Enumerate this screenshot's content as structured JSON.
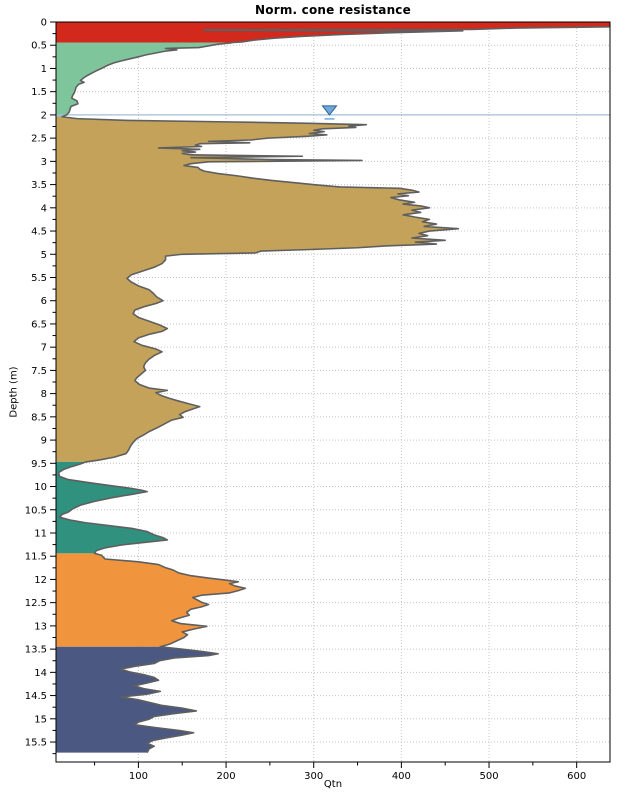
{
  "chart_data": {
    "type": "area",
    "title": "Norm. cone resistance",
    "xlabel": "Qtn",
    "ylabel": "Depth (m)",
    "xlim": [
      6,
      638
    ],
    "ylim": [
      0,
      15.93
    ],
    "grid": true,
    "x_axis": {
      "major_ticks": [
        100,
        200,
        300,
        400,
        500,
        600
      ],
      "tick_labels": [
        "100",
        "200",
        "300",
        "400",
        "500",
        "600"
      ],
      "minor_start": 50,
      "minor_step": 50
    },
    "y_axis": {
      "major_step": 0.5,
      "minor_step": 0.25,
      "tick_labels": [
        "0",
        "0.5",
        "1",
        "1.5",
        "2",
        "2.5",
        "3",
        "3.5",
        "4",
        "4.5",
        "5",
        "5.5",
        "6",
        "6.5",
        "7",
        "7.5",
        "8",
        "8.5",
        "9",
        "9.5",
        "10",
        "10.5",
        "11",
        "11.5",
        "12",
        "12.5",
        "13",
        "13.5",
        "14",
        "14.5",
        "15",
        "15.5"
      ]
    },
    "colors": {
      "curve": "#5f5f5f",
      "grid": "#c4c4c4",
      "axis": "#000000",
      "water_line": "#a3bfdb",
      "water_marker_fill": "#6fa8dc",
      "water_marker_stroke": "#2e5f8a"
    },
    "water_table": {
      "depth": 2.0,
      "marker_q": 318
    },
    "layers": [
      {
        "name": "layer-1",
        "color": "#d3281c",
        "top": 0.0,
        "bottom": 0.44
      },
      {
        "name": "layer-2",
        "color": "#7ec59b",
        "top": 0.44,
        "bottom": 2.04
      },
      {
        "name": "layer-3",
        "color": "#c4a25a",
        "top": 2.04,
        "bottom": 9.47
      },
      {
        "name": "layer-4",
        "color": "#31917f",
        "top": 9.47,
        "bottom": 11.44
      },
      {
        "name": "layer-5",
        "color": "#f0953e",
        "top": 11.44,
        "bottom": 13.45
      },
      {
        "name": "layer-6",
        "color": "#4b5882",
        "top": 13.45,
        "bottom": 15.73
      }
    ],
    "profile": [
      [
        0.0,
        650
      ],
      [
        0.1,
        650
      ],
      [
        0.13,
        530
      ],
      [
        0.16,
        480
      ],
      [
        0.165,
        175
      ],
      [
        0.18,
        175
      ],
      [
        0.19,
        470
      ],
      [
        0.23,
        390
      ],
      [
        0.27,
        330
      ],
      [
        0.31,
        285
      ],
      [
        0.35,
        255
      ],
      [
        0.39,
        232
      ],
      [
        0.43,
        218
      ],
      [
        0.44,
        208
      ],
      [
        0.45,
        205
      ],
      [
        0.48,
        190
      ],
      [
        0.52,
        178
      ],
      [
        0.55,
        169
      ],
      [
        0.57,
        131
      ],
      [
        0.6,
        144
      ],
      [
        0.63,
        130
      ],
      [
        0.67,
        119
      ],
      [
        0.71,
        108
      ],
      [
        0.75,
        100
      ],
      [
        0.79,
        91
      ],
      [
        0.84,
        80
      ],
      [
        0.88,
        72
      ],
      [
        0.93,
        65
      ],
      [
        0.99,
        59
      ],
      [
        1.05,
        52
      ],
      [
        1.1,
        47
      ],
      [
        1.16,
        41
      ],
      [
        1.21,
        37
      ],
      [
        1.26,
        34
      ],
      [
        1.3,
        38
      ],
      [
        1.34,
        32
      ],
      [
        1.4,
        29
      ],
      [
        1.46,
        28
      ],
      [
        1.52,
        27
      ],
      [
        1.58,
        25
      ],
      [
        1.64,
        24
      ],
      [
        1.7,
        30
      ],
      [
        1.76,
        31
      ],
      [
        1.82,
        23
      ],
      [
        1.88,
        22
      ],
      [
        1.94,
        21
      ],
      [
        2.0,
        18
      ],
      [
        2.04,
        13
      ],
      [
        2.08,
        30
      ],
      [
        2.12,
        90
      ],
      [
        2.15,
        200
      ],
      [
        2.18,
        295
      ],
      [
        2.21,
        360
      ],
      [
        2.24,
        340
      ],
      [
        2.27,
        348
      ],
      [
        2.3,
        310
      ],
      [
        2.33,
        300
      ],
      [
        2.36,
        312
      ],
      [
        2.4,
        295
      ],
      [
        2.43,
        315
      ],
      [
        2.46,
        292
      ],
      [
        2.5,
        248
      ],
      [
        2.54,
        228
      ],
      [
        2.57,
        180
      ],
      [
        2.6,
        227
      ],
      [
        2.62,
        170
      ],
      [
        2.65,
        165
      ],
      [
        2.68,
        172
      ],
      [
        2.71,
        123
      ],
      [
        2.74,
        170
      ],
      [
        2.77,
        150
      ],
      [
        2.8,
        165
      ],
      [
        2.83,
        150
      ],
      [
        2.86,
        160
      ],
      [
        2.89,
        287
      ],
      [
        2.92,
        160
      ],
      [
        2.96,
        250
      ],
      [
        2.98,
        355
      ],
      [
        3.01,
        180
      ],
      [
        3.05,
        160
      ],
      [
        3.09,
        152
      ],
      [
        3.13,
        168
      ],
      [
        3.17,
        170
      ],
      [
        3.21,
        175
      ],
      [
        3.26,
        190
      ],
      [
        3.31,
        212
      ],
      [
        3.36,
        230
      ],
      [
        3.41,
        252
      ],
      [
        3.46,
        278
      ],
      [
        3.51,
        305
      ],
      [
        3.55,
        330
      ],
      [
        3.58,
        398
      ],
      [
        3.62,
        412
      ],
      [
        3.66,
        420
      ],
      [
        3.7,
        396
      ],
      [
        3.74,
        408
      ],
      [
        3.78,
        388
      ],
      [
        3.83,
        398
      ],
      [
        3.88,
        415
      ],
      [
        3.92,
        402
      ],
      [
        3.96,
        422
      ],
      [
        4.0,
        432
      ],
      [
        4.05,
        412
      ],
      [
        4.1,
        422
      ],
      [
        4.15,
        402
      ],
      [
        4.2,
        416
      ],
      [
        4.25,
        432
      ],
      [
        4.3,
        424
      ],
      [
        4.35,
        440
      ],
      [
        4.4,
        426
      ],
      [
        4.45,
        465
      ],
      [
        4.5,
        432
      ],
      [
        4.55,
        420
      ],
      [
        4.6,
        430
      ],
      [
        4.65,
        412
      ],
      [
        4.7,
        450
      ],
      [
        4.74,
        416
      ],
      [
        4.78,
        440
      ],
      [
        4.82,
        382
      ],
      [
        4.86,
        350
      ],
      [
        4.9,
        292
      ],
      [
        4.93,
        240
      ],
      [
        4.97,
        234
      ],
      [
        5.0,
        150
      ],
      [
        5.04,
        131
      ],
      [
        5.12,
        131
      ],
      [
        5.2,
        127
      ],
      [
        5.28,
        118
      ],
      [
        5.36,
        105
      ],
      [
        5.44,
        92
      ],
      [
        5.52,
        87
      ],
      [
        5.6,
        92
      ],
      [
        5.68,
        100
      ],
      [
        5.76,
        112
      ],
      [
        5.84,
        117
      ],
      [
        5.92,
        121
      ],
      [
        6.0,
        128
      ],
      [
        6.06,
        120
      ],
      [
        6.12,
        108
      ],
      [
        6.2,
        96
      ],
      [
        6.28,
        94
      ],
      [
        6.36,
        100
      ],
      [
        6.44,
        112
      ],
      [
        6.52,
        124
      ],
      [
        6.6,
        133
      ],
      [
        6.66,
        127
      ],
      [
        6.72,
        113
      ],
      [
        6.8,
        100
      ],
      [
        6.88,
        95
      ],
      [
        6.96,
        104
      ],
      [
        7.04,
        120
      ],
      [
        7.1,
        127
      ],
      [
        7.18,
        118
      ],
      [
        7.26,
        112
      ],
      [
        7.34,
        108
      ],
      [
        7.42,
        106
      ],
      [
        7.5,
        108
      ],
      [
        7.58,
        103
      ],
      [
        7.66,
        98
      ],
      [
        7.72,
        96
      ],
      [
        7.8,
        101
      ],
      [
        7.88,
        112
      ],
      [
        7.93,
        133
      ],
      [
        7.98,
        120
      ],
      [
        8.04,
        126
      ],
      [
        8.1,
        135
      ],
      [
        8.16,
        146
      ],
      [
        8.22,
        158
      ],
      [
        8.28,
        170
      ],
      [
        8.33,
        162
      ],
      [
        8.39,
        153
      ],
      [
        8.45,
        147
      ],
      [
        8.51,
        151
      ],
      [
        8.57,
        138
      ],
      [
        8.65,
        130
      ],
      [
        8.73,
        122
      ],
      [
        8.81,
        113
      ],
      [
        8.89,
        106
      ],
      [
        8.97,
        98
      ],
      [
        9.05,
        94
      ],
      [
        9.13,
        91
      ],
      [
        9.21,
        89
      ],
      [
        9.29,
        86
      ],
      [
        9.37,
        72
      ],
      [
        9.43,
        55
      ],
      [
        9.47,
        40
      ],
      [
        9.52,
        33
      ],
      [
        9.57,
        24
      ],
      [
        9.63,
        15
      ],
      [
        9.7,
        9
      ],
      [
        9.78,
        10
      ],
      [
        9.85,
        20
      ],
      [
        9.92,
        45
      ],
      [
        9.99,
        72
      ],
      [
        10.04,
        92
      ],
      [
        10.08,
        104
      ],
      [
        10.11,
        110
      ],
      [
        10.17,
        92
      ],
      [
        10.24,
        70
      ],
      [
        10.32,
        50
      ],
      [
        10.4,
        34
      ],
      [
        10.48,
        25
      ],
      [
        10.55,
        20
      ],
      [
        10.6,
        13
      ],
      [
        10.66,
        10
      ],
      [
        10.72,
        22
      ],
      [
        10.78,
        40
      ],
      [
        10.84,
        66
      ],
      [
        10.9,
        92
      ],
      [
        10.97,
        110
      ],
      [
        11.04,
        118
      ],
      [
        11.1,
        128
      ],
      [
        11.15,
        133
      ],
      [
        11.2,
        108
      ],
      [
        11.26,
        80
      ],
      [
        11.32,
        62
      ],
      [
        11.38,
        52
      ],
      [
        11.44,
        50
      ],
      [
        11.48,
        58
      ],
      [
        11.52,
        60
      ],
      [
        11.56,
        62
      ],
      [
        11.62,
        100
      ],
      [
        11.68,
        123
      ],
      [
        11.74,
        130
      ],
      [
        11.8,
        140
      ],
      [
        11.86,
        146
      ],
      [
        11.92,
        160
      ],
      [
        11.97,
        180
      ],
      [
        12.01,
        198
      ],
      [
        12.05,
        214
      ],
      [
        12.09,
        204
      ],
      [
        12.14,
        210
      ],
      [
        12.19,
        222
      ],
      [
        12.24,
        214
      ],
      [
        12.29,
        204
      ],
      [
        12.34,
        172
      ],
      [
        12.39,
        162
      ],
      [
        12.44,
        167
      ],
      [
        12.49,
        172
      ],
      [
        12.54,
        180
      ],
      [
        12.59,
        172
      ],
      [
        12.64,
        160
      ],
      [
        12.71,
        155
      ],
      [
        12.77,
        158
      ],
      [
        12.84,
        145
      ],
      [
        12.89,
        138
      ],
      [
        12.95,
        148
      ],
      [
        13.01,
        178
      ],
      [
        13.07,
        163
      ],
      [
        13.13,
        150
      ],
      [
        13.19,
        156
      ],
      [
        13.25,
        152
      ],
      [
        13.32,
        144
      ],
      [
        13.39,
        136
      ],
      [
        13.45,
        125
      ],
      [
        13.5,
        150
      ],
      [
        13.55,
        172
      ],
      [
        13.6,
        191
      ],
      [
        13.64,
        180
      ],
      [
        13.69,
        141
      ],
      [
        13.75,
        124
      ],
      [
        13.81,
        118
      ],
      [
        13.87,
        96
      ],
      [
        13.93,
        80
      ],
      [
        13.99,
        90
      ],
      [
        14.05,
        106
      ],
      [
        14.11,
        118
      ],
      [
        14.17,
        123
      ],
      [
        14.23,
        110
      ],
      [
        14.29,
        95
      ],
      [
        14.35,
        106
      ],
      [
        14.41,
        125
      ],
      [
        14.47,
        110
      ],
      [
        14.53,
        80
      ],
      [
        14.59,
        100
      ],
      [
        14.65,
        113
      ],
      [
        14.71,
        126
      ],
      [
        14.77,
        150
      ],
      [
        14.83,
        166
      ],
      [
        14.89,
        140
      ],
      [
        14.95,
        118
      ],
      [
        15.01,
        112
      ],
      [
        15.07,
        100
      ],
      [
        15.13,
        96
      ],
      [
        15.19,
        120
      ],
      [
        15.25,
        146
      ],
      [
        15.3,
        163
      ],
      [
        15.35,
        150
      ],
      [
        15.41,
        132
      ],
      [
        15.47,
        116
      ],
      [
        15.53,
        110
      ],
      [
        15.59,
        118
      ],
      [
        15.65,
        112
      ],
      [
        15.73,
        110
      ]
    ]
  }
}
